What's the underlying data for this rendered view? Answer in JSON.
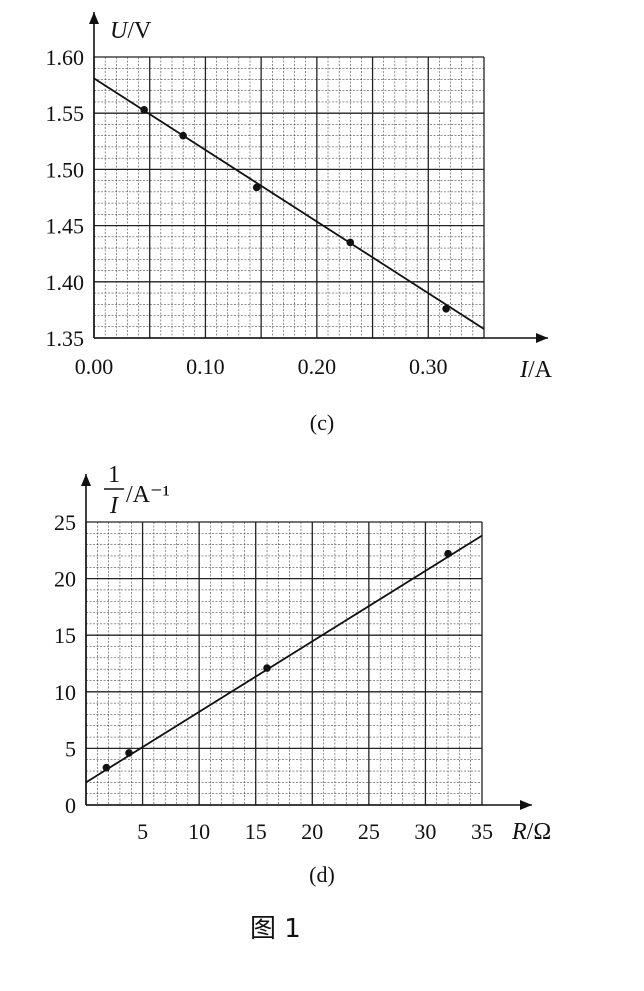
{
  "chart_data": [
    {
      "type": "scatter",
      "caption": "(c)",
      "xlabel": "I/A",
      "ylabel": "U/V",
      "xlim": [
        0,
        0.35
      ],
      "ylim": [
        1.35,
        1.6
      ],
      "xticks": [
        0.0,
        0.1,
        0.2,
        0.3
      ],
      "xtick_labels": [
        "0.00",
        "0.10",
        "0.20",
        "0.30"
      ],
      "yticks": [
        1.35,
        1.4,
        1.45,
        1.5,
        1.55,
        1.6
      ],
      "ytick_labels": [
        "1.35",
        "1.40",
        "1.45",
        "1.50",
        "1.55",
        "1.60"
      ],
      "grid": true,
      "points": [
        {
          "x": 0.045,
          "y": 1.553
        },
        {
          "x": 0.08,
          "y": 1.53
        },
        {
          "x": 0.146,
          "y": 1.484
        },
        {
          "x": 0.23,
          "y": 1.435
        },
        {
          "x": 0.316,
          "y": 1.376
        }
      ],
      "fit_line": [
        [
          0.0,
          1.581
        ],
        [
          0.35,
          1.358
        ]
      ]
    },
    {
      "type": "scatter",
      "caption": "(d)",
      "xlabel": "R/Ω",
      "ylabel_num": "1",
      "ylabel_den": "I",
      "ylabel_unit": "/A⁻¹",
      "xlim": [
        0,
        35
      ],
      "ylim": [
        0,
        25
      ],
      "xticks": [
        5,
        10,
        15,
        20,
        25,
        30,
        35
      ],
      "xtick_labels": [
        "5",
        "10",
        "15",
        "20",
        "25",
        "30",
        "35"
      ],
      "yticks": [
        0,
        5,
        10,
        15,
        20,
        25
      ],
      "ytick_labels": [
        "0",
        "5",
        "10",
        "15",
        "20",
        "25"
      ],
      "grid": true,
      "points": [
        {
          "x": 1.8,
          "y": 3.3
        },
        {
          "x": 3.8,
          "y": 4.6
        },
        {
          "x": 16.0,
          "y": 12.1
        },
        {
          "x": 32.0,
          "y": 22.2
        }
      ],
      "fit_line": [
        [
          0.0,
          2.0
        ],
        [
          35.0,
          23.8
        ]
      ]
    }
  ],
  "figure_title": "图 1"
}
